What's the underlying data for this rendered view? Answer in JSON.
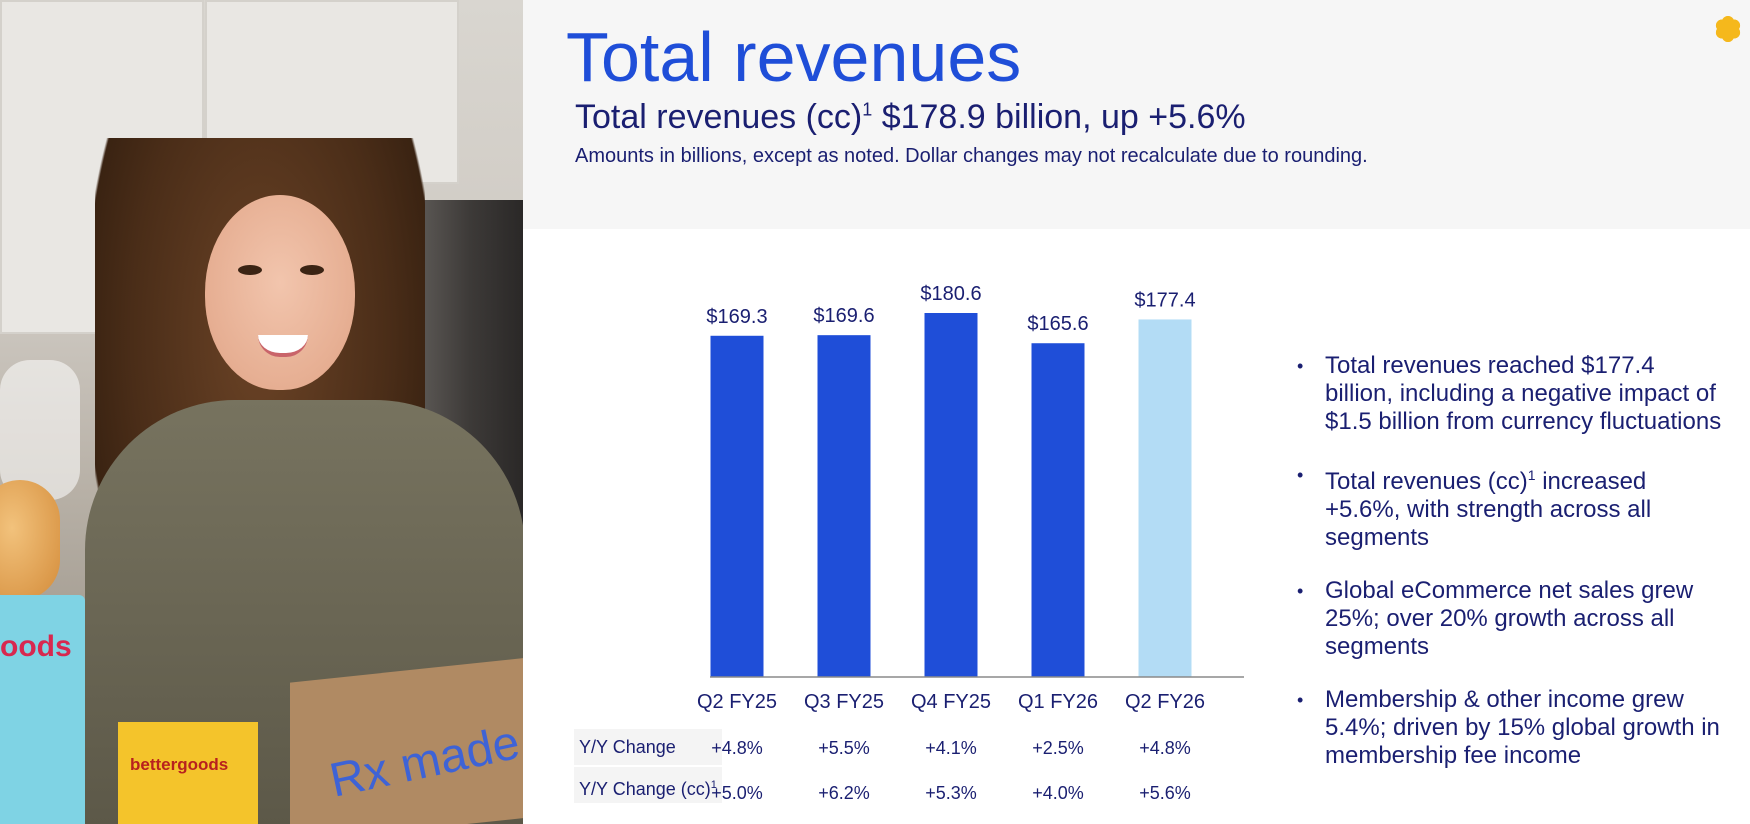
{
  "title": "Total revenues",
  "subtitle": {
    "prefix": "Total revenues (cc)",
    "footnote": "1",
    "suffix": " $178.9 billion, up +5.6%"
  },
  "note": "Amounts in billions, except as noted.  Dollar changes may not recalculate due to rounding.",
  "photo": {
    "bag_text": "Rx made",
    "chips_text": "oods",
    "box_text": "bettergoods"
  },
  "chart_data": {
    "type": "bar",
    "categories": [
      "Q2 FY25",
      "Q3 FY25",
      "Q4 FY25",
      "Q1 FY26",
      "Q2 FY26"
    ],
    "values": [
      169.3,
      169.6,
      180.6,
      165.6,
      177.4
    ],
    "value_labels": [
      "$169.3",
      "$169.6",
      "$180.6",
      "$165.6",
      "$177.4"
    ],
    "colors": [
      "#1f4ed8",
      "#1f4ed8",
      "#1f4ed8",
      "#1f4ed8",
      "#b3dcf5"
    ],
    "title": "",
    "xlabel": "",
    "ylabel": "",
    "grid": false,
    "legend": "none"
  },
  "table": {
    "rows": [
      {
        "label": "Y/Y Change",
        "footnote": "",
        "values": [
          "+4.8%",
          "+5.5%",
          "+4.1%",
          "+2.5%",
          "+4.8%"
        ]
      },
      {
        "label": "Y/Y Change (cc)",
        "footnote": "1",
        "values": [
          "+5.0%",
          "+6.2%",
          "+5.3%",
          "+4.0%",
          "+5.6%"
        ]
      }
    ]
  },
  "bullets": [
    {
      "text": "Total revenues reached $177.4 billion, including a negative impact of $1.5 billion from currency fluctuations"
    },
    {
      "pre": "Total revenues (cc)",
      "footnote": "1",
      "post": " increased +5.6%, with strength across all segments"
    },
    {
      "text": "Global eCommerce net sales grew 25%; over 20% growth across all segments"
    },
    {
      "text": "Membership & other income grew 5.4%; driven by 15% global growth in membership fee income"
    }
  ],
  "colors": {
    "accent": "#1f4ed8",
    "highlight_bar": "#b3dcf5",
    "text": "#1a1f71",
    "spark": "#f5b81c"
  }
}
